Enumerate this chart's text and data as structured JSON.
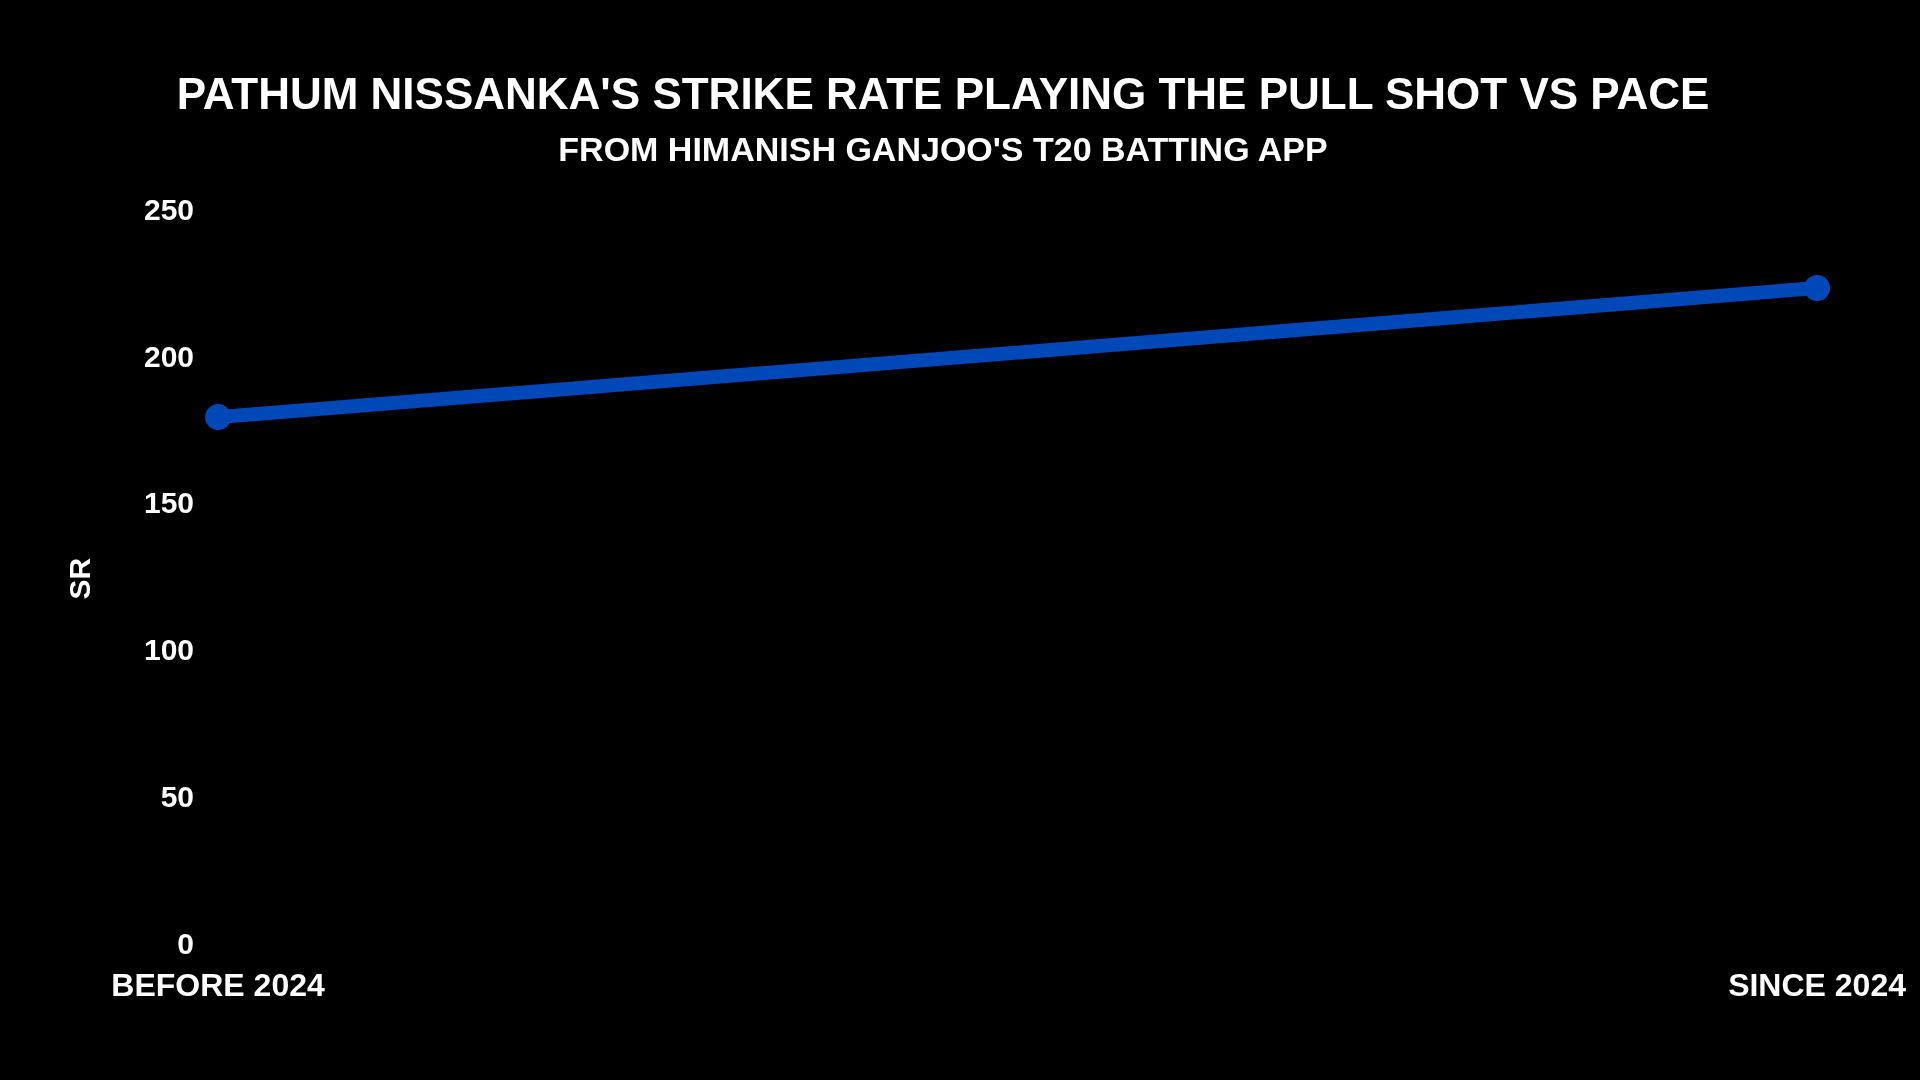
{
  "chart_data": {
    "type": "line",
    "title": "PATHUM NISSANKA'S STRIKE RATE PLAYING THE PULL SHOT VS PACE",
    "subtitle": "FROM HIMANISH GANJOO'S T20 BATTING APP",
    "ylabel": "SR",
    "categories": [
      "BEFORE 2024",
      "SINCE 2024"
    ],
    "series": [
      {
        "color": "#0047b8",
        "values": [
          180,
          224
        ]
      }
    ],
    "ylim": [
      0,
      250
    ],
    "yticks": [
      0,
      50,
      100,
      150,
      200,
      250
    ],
    "grid": false,
    "legend": false,
    "marker": "circle",
    "line_style": "solid"
  }
}
